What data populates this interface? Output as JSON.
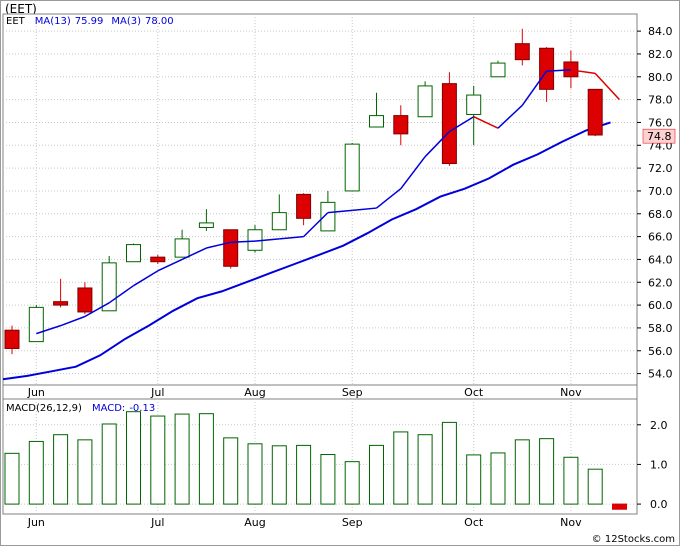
{
  "header": {
    "title": "(EET)",
    "watermark": "© 12Stocks.com"
  },
  "colors": {
    "up_candle": "#006400",
    "down_candle": "#dd0000",
    "ma13": "#0000dd",
    "ma3_up": "#0000dd",
    "ma3_down": "#dd0000",
    "macd_bar": "#006400",
    "price_tag_bg": "#ffd0d0",
    "grid": "#c8c8c8"
  },
  "chart_data": [
    {
      "type": "candlestick",
      "legend": [
        {
          "label": "EET",
          "value": ""
        },
        {
          "label": "MA(13)",
          "value": "75.99"
        },
        {
          "label": "MA(3)",
          "value": "78.00"
        }
      ],
      "last_price_label": "74.8",
      "ylim": [
        53,
        85.5
      ],
      "y_ticks": [
        "54.0",
        "56.0",
        "58.0",
        "60.0",
        "62.0",
        "64.0",
        "66.0",
        "68.0",
        "70.0",
        "72.0",
        "74.0",
        "76.0",
        "78.0",
        "80.0",
        "82.0",
        "84.0"
      ],
      "x_ticks": [
        {
          "label": "Jun",
          "bar": 1
        },
        {
          "label": "Jul",
          "bar": 6
        },
        {
          "label": "Aug",
          "bar": 10
        },
        {
          "label": "Sep",
          "bar": 14
        },
        {
          "label": "Oct",
          "bar": 19
        },
        {
          "label": "Nov",
          "bar": 23
        }
      ],
      "candles": [
        {
          "o": 57.8,
          "h": 58.2,
          "l": 55.7,
          "c": 56.2
        },
        {
          "o": 56.8,
          "h": 60.0,
          "l": 56.8,
          "c": 59.8
        },
        {
          "o": 60.3,
          "h": 62.3,
          "l": 59.8,
          "c": 60.0
        },
        {
          "o": 61.5,
          "h": 62.0,
          "l": 59.2,
          "c": 59.4
        },
        {
          "o": 59.5,
          "h": 64.3,
          "l": 59.5,
          "c": 63.7
        },
        {
          "o": 63.8,
          "h": 65.4,
          "l": 63.8,
          "c": 65.3
        },
        {
          "o": 64.2,
          "h": 64.4,
          "l": 63.6,
          "c": 63.8
        },
        {
          "o": 64.2,
          "h": 66.6,
          "l": 64.2,
          "c": 65.8
        },
        {
          "o": 66.8,
          "h": 68.4,
          "l": 66.5,
          "c": 67.2
        },
        {
          "o": 66.6,
          "h": 66.6,
          "l": 63.2,
          "c": 63.4
        },
        {
          "o": 64.8,
          "h": 67.0,
          "l": 64.6,
          "c": 66.6
        },
        {
          "o": 66.6,
          "h": 69.7,
          "l": 66.6,
          "c": 68.1
        },
        {
          "o": 69.7,
          "h": 69.8,
          "l": 67.0,
          "c": 67.6
        },
        {
          "o": 66.5,
          "h": 70.0,
          "l": 66.5,
          "c": 69.0
        },
        {
          "o": 70.0,
          "h": 74.2,
          "l": 70.0,
          "c": 74.1
        },
        {
          "o": 75.6,
          "h": 78.6,
          "l": 75.6,
          "c": 76.6
        },
        {
          "o": 76.6,
          "h": 77.5,
          "l": 74.0,
          "c": 75.0
        },
        {
          "o": 76.5,
          "h": 79.6,
          "l": 76.5,
          "c": 79.2
        },
        {
          "o": 79.4,
          "h": 80.4,
          "l": 72.2,
          "c": 72.4
        },
        {
          "o": 76.7,
          "h": 79.2,
          "l": 74.0,
          "c": 78.4
        },
        {
          "o": 80.0,
          "h": 81.4,
          "l": 80.0,
          "c": 81.2
        },
        {
          "o": 82.9,
          "h": 84.2,
          "l": 81.0,
          "c": 81.5
        },
        {
          "o": 82.5,
          "h": 82.6,
          "l": 77.8,
          "c": 78.9
        },
        {
          "o": 81.3,
          "h": 82.3,
          "l": 79.0,
          "c": 80.0
        },
        {
          "o": 78.9,
          "h": 78.9,
          "l": 74.8,
          "c": 74.9
        }
      ],
      "ma13": [
        53.5,
        53.8,
        54.2,
        54.6,
        55.6,
        57.0,
        58.2,
        59.5,
        60.6,
        61.2,
        62.0,
        62.8,
        63.6,
        64.4,
        65.2,
        66.3,
        67.5,
        68.4,
        69.5,
        70.2,
        71.1,
        72.3,
        73.2,
        74.3,
        75.3,
        76.0
      ],
      "ma3": [
        57.5,
        58.2,
        59.0,
        60.2,
        61.7,
        63.0,
        64.0,
        65.0,
        65.5,
        65.6,
        65.8,
        66.0,
        68.1,
        68.3,
        68.5,
        70.2,
        73.0,
        75.2,
        76.5,
        75.5,
        77.5,
        80.5,
        80.6,
        80.3,
        78.0
      ],
      "ma3_bar_offset": 1
    },
    {
      "type": "bar",
      "legend": [
        {
          "label": "MACD(26,12,9)",
          "value": ""
        },
        {
          "label": "MACD:",
          "value": "-0.13"
        }
      ],
      "ylim": [
        -0.25,
        2.65
      ],
      "y_ticks": [
        "0.0",
        "1.0",
        "2.0"
      ],
      "values": [
        1.28,
        1.58,
        1.75,
        1.62,
        2.02,
        2.33,
        2.22,
        2.27,
        2.28,
        1.67,
        1.52,
        1.47,
        1.48,
        1.25,
        1.07,
        1.48,
        1.82,
        1.75,
        2.06,
        1.24,
        1.29,
        1.62,
        1.65,
        1.18,
        0.88,
        -0.13
      ]
    }
  ]
}
